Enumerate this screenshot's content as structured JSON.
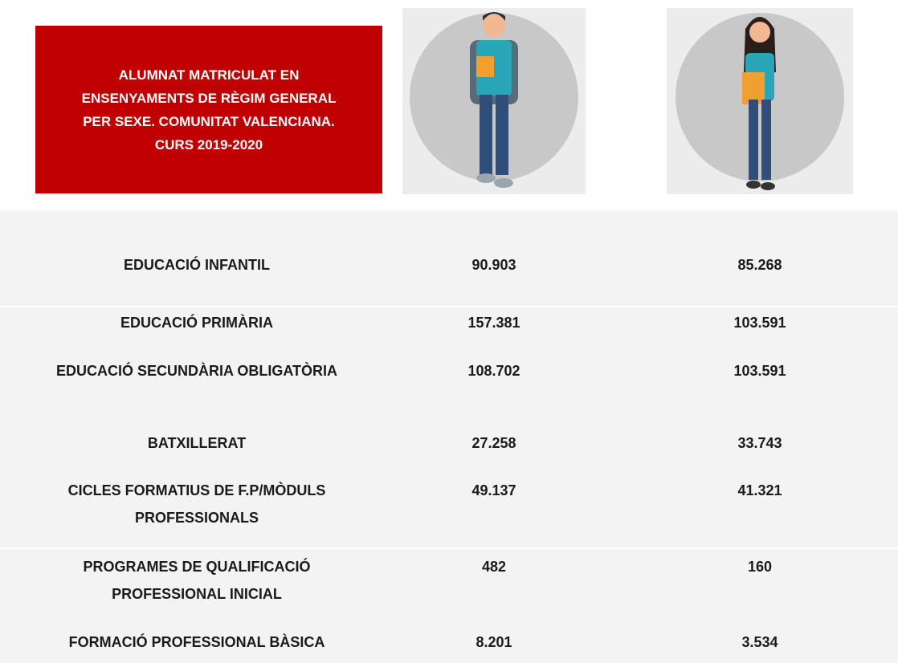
{
  "header": {
    "title": "ALUMNAT MATRICULAT EN ENSENYAMENTS DE RÈGIM GENERAL PER SEXE. COMUNITAT VALENCIANA. CURS 2019-2020"
  },
  "table": {
    "rows": [
      [
        "EDUCACIÓ INFANTIL",
        "90.903",
        "85.268"
      ],
      [
        "EDUCACIÓ PRIMÀRIA",
        "157.381",
        "103.591"
      ],
      [
        "EDUCACIÓ SECUNDÀRIA OBLIGATÒRIA",
        "108.702",
        "103.591"
      ],
      [
        "BATXILLERAT",
        "27.258",
        "33.743"
      ],
      [
        "CICLES FORMATIUS DE F.P/MÒDULS PROFESSIONALS",
        "49.137",
        "41.321"
      ],
      [
        "PROGRAMES DE QUALIFICACIÓ PROFESSIONAL INICIAL",
        "482",
        "160"
      ],
      [
        "FORMACIÓ PROFESSIONAL BÀSICA",
        "8.201",
        "3.534"
      ]
    ]
  }
}
